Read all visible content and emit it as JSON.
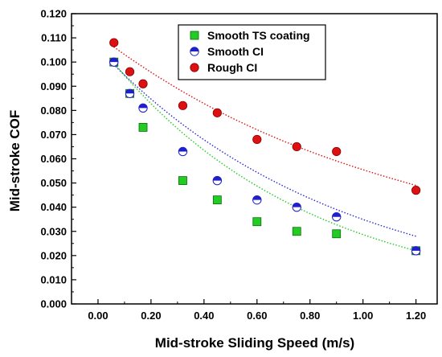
{
  "chart_data": {
    "type": "scatter",
    "xlabel": "Mid-stroke Sliding Speed (m/s)",
    "ylabel": "Mid-stroke COF",
    "xlim": [
      -0.1,
      1.28
    ],
    "ylim": [
      0.0,
      0.12
    ],
    "xticks": [
      "0.00",
      "0.20",
      "0.40",
      "0.60",
      "0.80",
      "1.00",
      "1.20"
    ],
    "yticks": [
      "0.000",
      "0.010",
      "0.020",
      "0.030",
      "0.040",
      "0.050",
      "0.060",
      "0.070",
      "0.080",
      "0.090",
      "0.100",
      "0.110",
      "0.120"
    ],
    "legend_position": "top-right",
    "grid": false,
    "series": [
      {
        "name": "Smooth TS coating",
        "marker": "square",
        "color": "#22cc22",
        "fit_color": "#22cc22",
        "x": [
          0.06,
          0.12,
          0.17,
          0.32,
          0.45,
          0.6,
          0.75,
          0.9,
          1.2
        ],
        "y": [
          0.1,
          0.087,
          0.073,
          0.051,
          0.043,
          0.034,
          0.03,
          0.029,
          0.022
        ],
        "fit": [
          0.101,
          0.022
        ]
      },
      {
        "name": "Smooth CI",
        "marker": "half-circle",
        "color": "#1f1fcc",
        "fit_color": "#2a2ad0",
        "x": [
          0.06,
          0.12,
          0.17,
          0.32,
          0.45,
          0.6,
          0.75,
          0.9,
          1.2
        ],
        "y": [
          0.1,
          0.087,
          0.081,
          0.063,
          0.051,
          0.043,
          0.04,
          0.036,
          0.022
        ],
        "fit": [
          0.1,
          0.028
        ]
      },
      {
        "name": "Rough CI",
        "marker": "circle",
        "color": "#dd1111",
        "fit_color": "#dd1111",
        "x": [
          0.06,
          0.12,
          0.17,
          0.32,
          0.45,
          0.6,
          0.75,
          0.9,
          1.2
        ],
        "y": [
          0.108,
          0.096,
          0.091,
          0.082,
          0.079,
          0.068,
          0.065,
          0.063,
          0.047
        ],
        "fit": [
          0.107,
          0.049
        ]
      }
    ]
  }
}
